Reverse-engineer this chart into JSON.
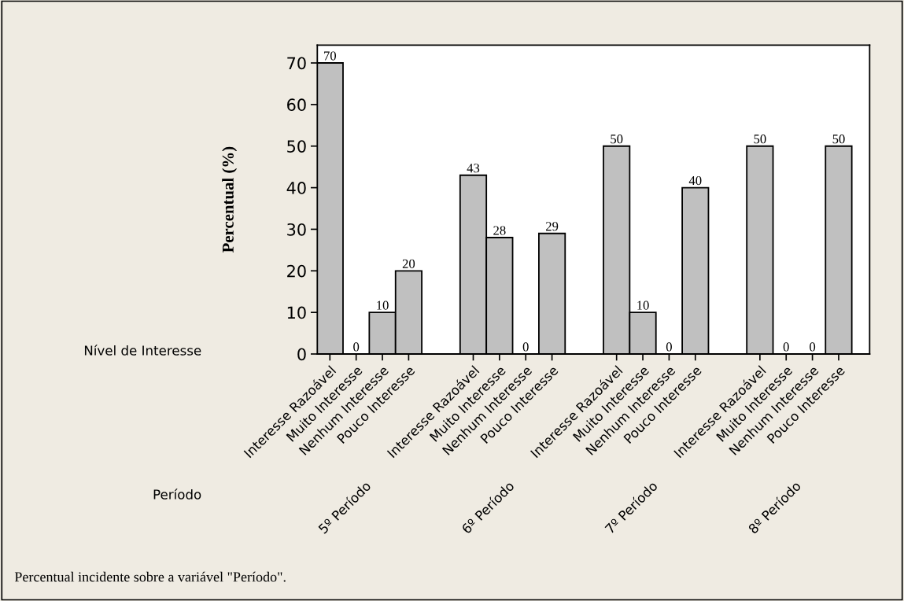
{
  "chart_data": {
    "type": "bar",
    "ylabel": "Percentual (%)",
    "categories": [
      "Interesse Razoável",
      "Muito Interesse",
      "Nenhum Interesse",
      "Pouco Interesse",
      "Interesse Razoável",
      "Muito Interesse",
      "Nenhum Interesse",
      "Pouco Interesse",
      "Interesse Razoável",
      "Muito Interesse",
      "Nenhum Interesse",
      "Pouco Interesse",
      "Interesse Razoável",
      "Muito Interesse",
      "Nenhum Interesse",
      "Pouco Interesse"
    ],
    "values": [
      70,
      0,
      10,
      20,
      43,
      28,
      0,
      29,
      50,
      10,
      0,
      40,
      50,
      0,
      0,
      50
    ],
    "color": "#c0c0c0",
    "ylim": [
      0,
      74.3
    ],
    "yticks": [
      0,
      10,
      20,
      30,
      40,
      50,
      60,
      70
    ],
    "data_labels": true,
    "grid": false,
    "legend": false,
    "annotations": [
      "Nível de Interesse",
      "Período",
      "5º Período",
      "6º Período",
      "7º Período",
      "8º Período",
      "Percentual incidente sobre a variável \"Período\"."
    ]
  }
}
